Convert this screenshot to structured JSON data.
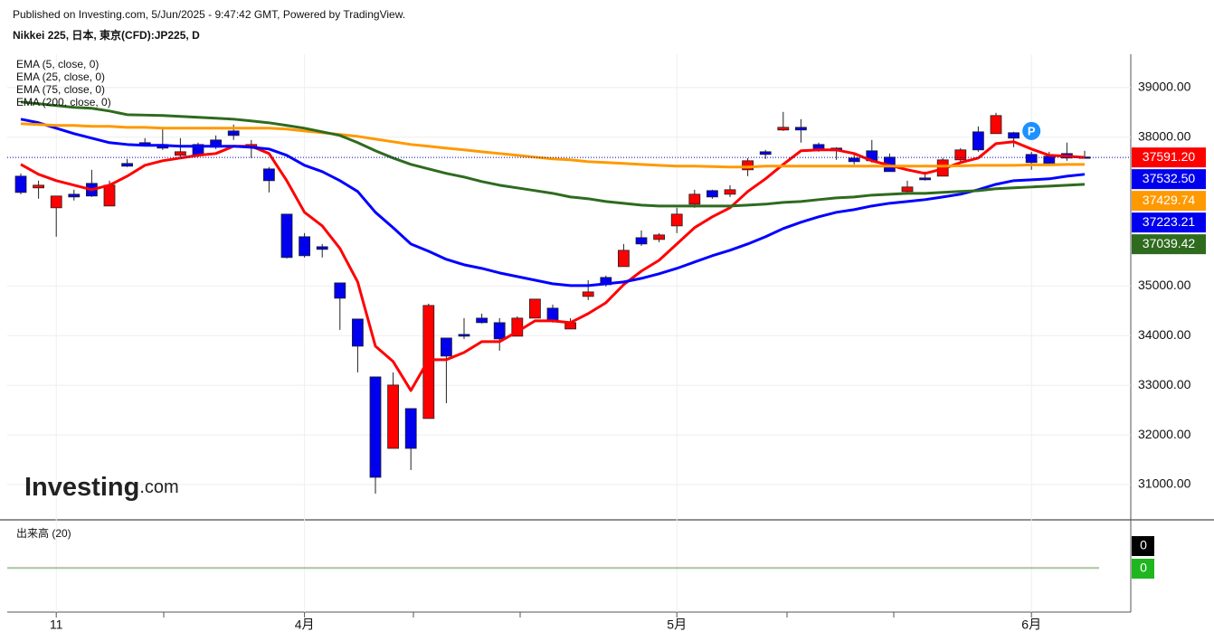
{
  "chart_data": {
    "type": "candlestick",
    "subtitle": "Published on Investing.com, 5/Jun/2025 - 9:47:42 GMT, Powered by TradingView.",
    "title": "Nikkei 225, 日本, 東京(CFD):JP225, D",
    "categories": [
      null,
      null,
      "11",
      null,
      null,
      null,
      null,
      null,
      null,
      null,
      null,
      null,
      null,
      null,
      null,
      null,
      "4月",
      null,
      null,
      null,
      null,
      null,
      null,
      null,
      null,
      null,
      null,
      null,
      null,
      null,
      null,
      null,
      null,
      null,
      null,
      null,
      null,
      "5月",
      null,
      null,
      null,
      null,
      null,
      null,
      null,
      null,
      null,
      null,
      null,
      null,
      null,
      null,
      null,
      null,
      null,
      null,
      null,
      "6月",
      null,
      null,
      null
    ],
    "open": [
      37214,
      36978,
      36577,
      36850,
      37069,
      36613,
      37470,
      37889,
      37852,
      37634,
      37852,
      37943,
      38125,
      37798,
      37360,
      36449,
      35994,
      35793,
      35064,
      34336,
      33170,
      31730,
      32532,
      32332,
      33953,
      34026,
      34354,
      34263,
      33990,
      34354,
      34555,
      34135,
      34791,
      35174,
      35392,
      35975,
      35939,
      36212,
      36650,
      36923,
      36850,
      37342,
      37706,
      38144,
      38198,
      37852,
      37779,
      37579,
      37725,
      37597,
      36905,
      37178,
      37214,
      37542,
      38107,
      38071,
      38089,
      37652,
      37615,
      37670,
      37600
    ],
    "high": [
      37269,
      37123,
      36814,
      36941,
      37342,
      37123,
      37561,
      37980,
      38162,
      37980,
      37889,
      38034,
      38253,
      37943,
      37397,
      36449,
      36067,
      35848,
      35064,
      34336,
      33170,
      33261,
      32532,
      34645,
      33953,
      34354,
      34445,
      34354,
      34390,
      34737,
      34627,
      34354,
      35119,
      35210,
      35848,
      36121,
      36067,
      36577,
      36941,
      36941,
      37032,
      37579,
      37743,
      38508,
      38362,
      37889,
      37797,
      37670,
      37943,
      37670,
      37123,
      37306,
      37579,
      37779,
      38216,
      38490,
      38107,
      37706,
      37706,
      37889,
      37725
    ],
    "low": [
      36850,
      36759,
      35994,
      36723,
      36795,
      36613,
      37397,
      37816,
      37743,
      37579,
      37597,
      37761,
      37943,
      37579,
      36886,
      35556,
      35575,
      35575,
      34117,
      33261,
      30819,
      31730,
      31293,
      32332,
      32641,
      33935,
      34245,
      33698,
      33990,
      34354,
      34263,
      34135,
      34718,
      34991,
      35392,
      35812,
      35884,
      36067,
      36577,
      36759,
      36795,
      37214,
      37561,
      38125,
      37889,
      37706,
      37543,
      37451,
      37488,
      37306,
      36850,
      37123,
      37214,
      37488,
      37706,
      38071,
      37797,
      37342,
      37433,
      37524,
      37579
    ],
    "close": [
      36886,
      37032,
      36814,
      36795,
      36814,
      37032,
      37415,
      37852,
      37779,
      37706,
      37634,
      37798,
      38034,
      37852,
      37123,
      35575,
      35611,
      35739,
      34755,
      33789,
      31147,
      33006,
      31730,
      34609,
      33589,
      33990,
      34263,
      33935,
      34354,
      34737,
      34299,
      34263,
      34882,
      35028,
      35720,
      35848,
      36030,
      36449,
      36850,
      36795,
      36941,
      37524,
      37652,
      38198,
      38144,
      37743,
      37725,
      37506,
      37524,
      37306,
      36996,
      37141,
      37542,
      37743,
      37743,
      38435,
      37980,
      37488,
      37470,
      37579,
      37591.2
    ],
    "up_color": "#ff0000",
    "down_color": "#0000ee",
    "series": [
      {
        "name": "EMA (5, close, 0)",
        "color": "#ff0000",
        "values": [
          37451,
          37251,
          37123,
          37032,
          36941,
          37032,
          37214,
          37433,
          37524,
          37579,
          37634,
          37670,
          37816,
          37816,
          37670,
          37123,
          36486,
          36212,
          35757,
          35083,
          33789,
          33479,
          32896,
          33516,
          33516,
          33662,
          33880,
          33880,
          34081,
          34299,
          34299,
          34263,
          34445,
          34664,
          35028,
          35301,
          35520,
          35848,
          36176,
          36395,
          36577,
          36905,
          37160,
          37451,
          37725,
          37743,
          37743,
          37670,
          37524,
          37433,
          37342,
          37269,
          37360,
          37488,
          37579,
          37870,
          37907,
          37761,
          37634,
          37616,
          37591
        ]
      },
      {
        "name": "EMA (25, close, 0)",
        "color": "#0000ff",
        "values": [
          38362,
          38290,
          38180,
          38071,
          37980,
          37889,
          37852,
          37834,
          37834,
          37816,
          37816,
          37816,
          37816,
          37797,
          37761,
          37634,
          37433,
          37306,
          37123,
          36905,
          36486,
          36176,
          35848,
          35702,
          35538,
          35429,
          35356,
          35265,
          35192,
          35119,
          35046,
          35010,
          35010,
          35046,
          35083,
          35155,
          35247,
          35356,
          35484,
          35611,
          35721,
          35848,
          35994,
          36158,
          36285,
          36395,
          36486,
          36540,
          36613,
          36668,
          36704,
          36741,
          36795,
          36850,
          36941,
          37050,
          37123,
          37141,
          37160,
          37214,
          37251
        ]
      },
      {
        "name": "EMA (75, close, 0)",
        "color": "#ff9900",
        "values": [
          38271,
          38253,
          38235,
          38235,
          38217,
          38217,
          38198,
          38198,
          38180,
          38180,
          38180,
          38180,
          38180,
          38180,
          38180,
          38162,
          38125,
          38089,
          38053,
          38016,
          37961,
          37907,
          37852,
          37816,
          37779,
          37743,
          37706,
          37670,
          37634,
          37597,
          37561,
          37543,
          37506,
          37488,
          37470,
          37451,
          37433,
          37415,
          37415,
          37406,
          37397,
          37397,
          37415,
          37415,
          37415,
          37415,
          37415,
          37415,
          37415,
          37415,
          37415,
          37415,
          37415,
          37424,
          37433,
          37433,
          37433,
          37442,
          37442,
          37451,
          37451
        ]
      },
      {
        "name": "EMA (200, close, 0)",
        "color": "#2e6b1e",
        "values": [
          38708,
          38672,
          38636,
          38599,
          38581,
          38526,
          38453,
          38444,
          38435,
          38417,
          38399,
          38381,
          38362,
          38326,
          38289,
          38235,
          38180,
          38107,
          38034,
          37889,
          37725,
          37579,
          37451,
          37360,
          37269,
          37196,
          37105,
          37032,
          36978,
          36923,
          36868,
          36795,
          36759,
          36704,
          36668,
          36631,
          36613,
          36613,
          36613,
          36613,
          36613,
          36631,
          36650,
          36686,
          36704,
          36741,
          36777,
          36795,
          36832,
          36850,
          36868,
          36868,
          36887,
          36905,
          36923,
          36960,
          36978,
          36996,
          37014,
          37032,
          37050
        ]
      }
    ],
    "price_labels": [
      {
        "value": 37591.2,
        "label": "37591.20",
        "color": "#ff0000"
      },
      {
        "value": 37532.5,
        "label": "37532.50",
        "color": "#0000ee"
      },
      {
        "value": 37429.74,
        "label": "37429.74",
        "color": "#ff9900"
      },
      {
        "value": 37223.21,
        "label": "37223.21",
        "color": "#0000ee"
      },
      {
        "value": 37039.42,
        "label": "37039.42",
        "color": "#2e6b1e"
      }
    ],
    "annotations": [
      {
        "text": "P",
        "x": 57,
        "value": 38125,
        "color": "#1e90ff"
      }
    ],
    "ylim": [
      30290,
      39670
    ],
    "yticks": [
      {
        "value": 39000,
        "label": "39000.00"
      },
      {
        "value": 38000,
        "label": "38000.00"
      },
      {
        "value": 35000,
        "label": "35000.00"
      },
      {
        "value": 34000,
        "label": "34000.00"
      },
      {
        "value": 33000,
        "label": "33000.00"
      },
      {
        "value": 32000,
        "label": "32000.00"
      },
      {
        "value": 31000,
        "label": "31000.00"
      }
    ],
    "grid": true,
    "volume": {
      "title": "出来高 (20)",
      "values": [
        0,
        0
      ],
      "colors": [
        "#000000",
        "#1fb61f"
      ]
    },
    "watermark": {
      "name": "Investing",
      "suffix": ".com"
    }
  }
}
